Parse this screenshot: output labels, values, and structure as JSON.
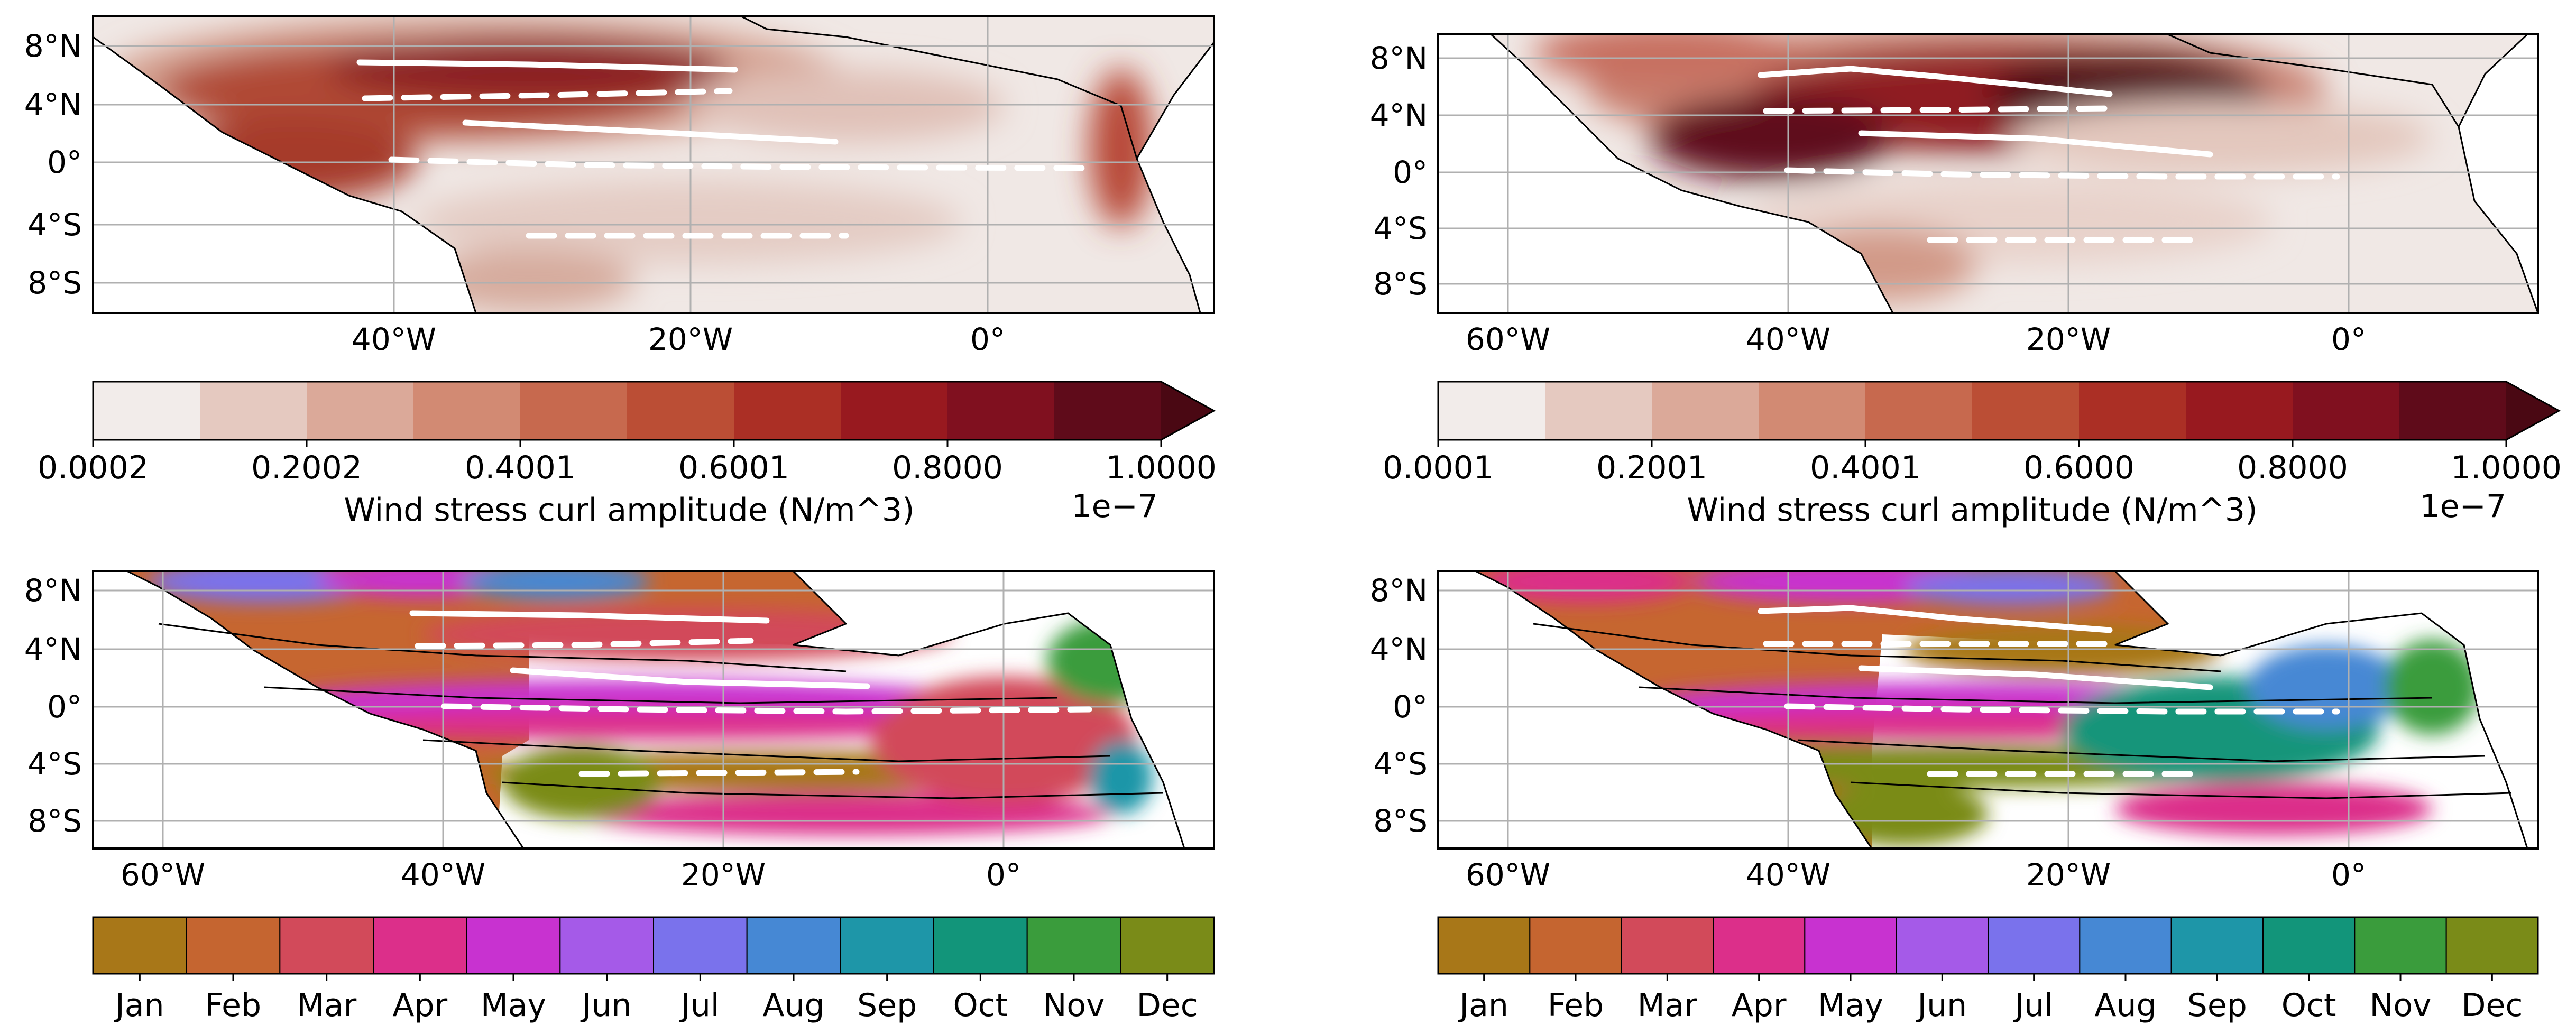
{
  "figure": {
    "panels": [
      {
        "id": "amp-a",
        "kind": "amplitude",
        "lat_labels": [
          "8°N",
          "4°N",
          "0°",
          "4°S",
          "8°S"
        ],
        "lon_labels": [
          "40°W",
          "20°W",
          "0°"
        ]
      },
      {
        "id": "amp-b",
        "kind": "amplitude",
        "lat_labels": [
          "8°N",
          "4°N",
          "0°",
          "4°S",
          "8°S"
        ],
        "lon_labels": [
          "60°W",
          "40°W",
          "20°W",
          "0°"
        ]
      },
      {
        "id": "phase-a",
        "kind": "phase",
        "lat_labels": [
          "8°N",
          "4°N",
          "0°",
          "4°S",
          "8°S"
        ],
        "lon_labels": [
          "60°W",
          "40°W",
          "20°W",
          "0°"
        ]
      },
      {
        "id": "phase-b",
        "kind": "phase",
        "lat_labels": [
          "8°N",
          "4°N",
          "0°",
          "4°S",
          "8°S"
        ],
        "lon_labels": [
          "60°W",
          "40°W",
          "20°W",
          "0°"
        ]
      }
    ],
    "colorbars": [
      {
        "id": "cb-amp-a",
        "ticks": [
          "0.0002",
          "0.2002",
          "0.4001",
          "0.6001",
          "0.8000",
          "1.0000"
        ],
        "label": "Wind stress curl amplitude (N/m^3)",
        "offset": "1e−7",
        "colors": [
          "#f2ecea",
          "#e5c9c0",
          "#dba999",
          "#d28a73",
          "#c7694e",
          "#bb4e35",
          "#ab2f25",
          "#98191f",
          "#80101f",
          "#5f0b1a"
        ],
        "extend_color": "#4a0813"
      },
      {
        "id": "cb-amp-b",
        "ticks": [
          "0.0001",
          "0.2001",
          "0.4001",
          "0.6000",
          "0.8000",
          "1.0000"
        ],
        "label": "Wind stress curl amplitude (N/m^3)",
        "offset": "1e−7",
        "colors": [
          "#f2ecea",
          "#e5c9c0",
          "#dba999",
          "#d28a73",
          "#c7694e",
          "#bb4e35",
          "#ab2f25",
          "#98191f",
          "#80101f",
          "#5f0b1a"
        ],
        "extend_color": "#4a0813"
      },
      {
        "id": "cb-phase-a",
        "months": [
          "Jan",
          "Feb",
          "Mar",
          "Apr",
          "May",
          "Jun",
          "Jul",
          "Aug",
          "Sep",
          "Oct",
          "Nov",
          "Dec"
        ],
        "colors": [
          "#a87718",
          "#c56530",
          "#d24a5a",
          "#dc2f8a",
          "#c832d0",
          "#a55ae8",
          "#7a72ec",
          "#4688d4",
          "#1e96a8",
          "#12957a",
          "#3a9c3c",
          "#7a8b18"
        ]
      },
      {
        "id": "cb-phase-b",
        "months": [
          "Jan",
          "Feb",
          "Mar",
          "Apr",
          "May",
          "Jun",
          "Jul",
          "Aug",
          "Sep",
          "Oct",
          "Nov",
          "Dec"
        ],
        "colors": [
          "#a87718",
          "#c56530",
          "#d24a5a",
          "#dc2f8a",
          "#c832d0",
          "#a55ae8",
          "#7a72ec",
          "#4688d4",
          "#1e96a8",
          "#12957a",
          "#3a9c3c",
          "#7a8b18"
        ]
      }
    ]
  }
}
